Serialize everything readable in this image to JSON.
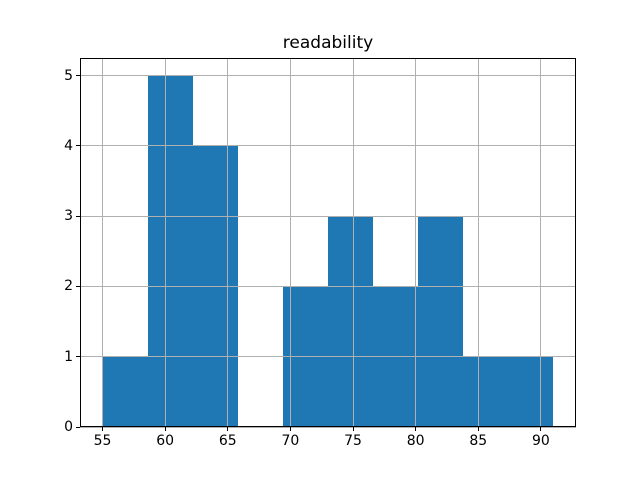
{
  "chart_data": {
    "type": "bar",
    "subtype": "histogram",
    "title": "readability",
    "xlabel": "",
    "ylabel": "",
    "bin_edges": [
      55.0,
      58.6,
      62.2,
      65.8,
      69.4,
      73.0,
      76.6,
      80.2,
      83.8,
      87.4,
      91.0
    ],
    "counts": [
      1,
      5,
      4,
      0,
      2,
      3,
      2,
      3,
      1,
      1
    ],
    "xticks": [
      55,
      60,
      65,
      70,
      75,
      80,
      85,
      90
    ],
    "yticks": [
      0,
      1,
      2,
      3,
      4,
      5
    ],
    "xlim": [
      53.2,
      92.8
    ],
    "ylim": [
      0,
      5.25
    ],
    "grid": true,
    "legend": false,
    "bar_color": "#1f77b4",
    "grid_color": "#b0b0b0",
    "spine_color": "#000000",
    "text_color": "#000000",
    "background_color": "#ffffff"
  }
}
